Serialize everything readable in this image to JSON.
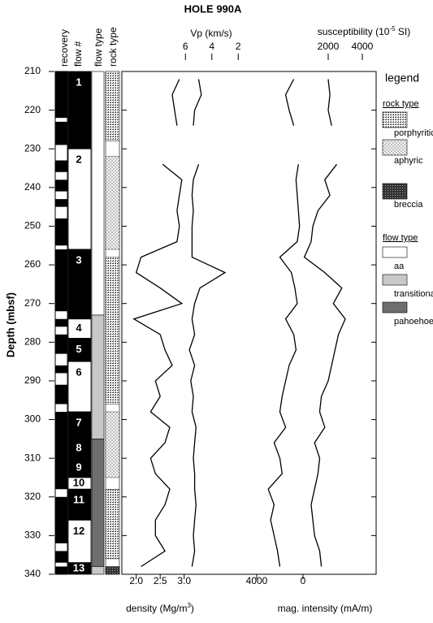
{
  "title": "HOLE 990A",
  "depth_axis": {
    "label": "Depth (mbsf)",
    "lim": [
      210,
      340
    ],
    "ticks": [
      210,
      220,
      230,
      240,
      250,
      260,
      270,
      280,
      290,
      300,
      310,
      320,
      330,
      340
    ]
  },
  "columns": [
    "recovery",
    "flow #",
    "flow type",
    "rock type"
  ],
  "recovery": [
    [
      210,
      222
    ],
    [
      223,
      229
    ],
    [
      233,
      236
    ],
    [
      238,
      241
    ],
    [
      243,
      245
    ],
    [
      248,
      255
    ],
    [
      256,
      272
    ],
    [
      274,
      276
    ],
    [
      278,
      283
    ],
    [
      286,
      288
    ],
    [
      291,
      296
    ],
    [
      298,
      318
    ],
    [
      320,
      332
    ],
    [
      334,
      337
    ],
    [
      338,
      340
    ]
  ],
  "flows": [
    {
      "label": "1",
      "top": 210,
      "bottom": 230,
      "fill": "#000000"
    },
    {
      "label": "2",
      "top": 230,
      "bottom": 256,
      "fill": "#ffffff"
    },
    {
      "label": "3",
      "top": 256,
      "bottom": 274,
      "fill": "#000000"
    },
    {
      "label": "4",
      "top": 274,
      "bottom": 279,
      "fill": "#ffffff"
    },
    {
      "label": "5",
      "top": 279,
      "bottom": 285,
      "fill": "#000000"
    },
    {
      "label": "6",
      "top": 285,
      "bottom": 298,
      "fill": "#ffffff"
    },
    {
      "label": "7",
      "top": 298,
      "bottom": 305,
      "fill": "#000000"
    },
    {
      "label": "8",
      "top": 305,
      "bottom": 310,
      "fill": "#000000"
    },
    {
      "label": "9",
      "top": 310,
      "bottom": 315,
      "fill": "#000000"
    },
    {
      "label": "10",
      "top": 315,
      "bottom": 318,
      "fill": "#ffffff"
    },
    {
      "label": "11",
      "top": 318,
      "bottom": 326,
      "fill": "#000000"
    },
    {
      "label": "12",
      "top": 326,
      "bottom": 337,
      "fill": "#ffffff"
    },
    {
      "label": "13",
      "top": 337,
      "bottom": 340,
      "fill": "#000000"
    }
  ],
  "flow_types": [
    {
      "type": "aa",
      "top": 210,
      "bottom": 273
    },
    {
      "type": "transitional",
      "top": 273,
      "bottom": 305
    },
    {
      "type": "pahoehoe",
      "top": 305,
      "bottom": 338
    },
    {
      "type": "transitional",
      "top": 338,
      "bottom": 340
    }
  ],
  "rock_types": [
    {
      "type": "porphyritic",
      "top": 210,
      "bottom": 228
    },
    {
      "type": "aphyric",
      "top": 232,
      "bottom": 256
    },
    {
      "type": "porphyritic",
      "top": 258,
      "bottom": 296
    },
    {
      "type": "aphyric",
      "top": 298,
      "bottom": 315
    },
    {
      "type": "porphyritic",
      "top": 318,
      "bottom": 336
    },
    {
      "type": "breccia",
      "top": 338,
      "bottom": 340
    }
  ],
  "legend": {
    "title": "legend",
    "rock_type": {
      "title": "rock type",
      "items": [
        "porphyritic",
        "aphyric",
        "breccia"
      ]
    },
    "flow_type": {
      "title": "flow type",
      "items": [
        {
          "label": "aa",
          "color": "#ffffff"
        },
        {
          "label": "transitional",
          "color": "#c8c8c8"
        },
        {
          "label": "pahoehoe",
          "color": "#6e6e6e"
        }
      ]
    }
  },
  "depth": [
    212,
    216,
    220,
    224,
    228,
    234,
    238,
    242,
    246,
    250,
    254,
    258,
    262,
    266,
    270,
    274,
    278,
    282,
    286,
    290,
    294,
    298,
    302,
    306,
    310,
    314,
    318,
    322,
    326,
    330,
    334,
    338
  ],
  "tracks": [
    {
      "axis": "bottom",
      "label_parts": [
        "density (Mg/m",
        "3",
        ")"
      ],
      "lim": [
        1.7,
        3.3
      ],
      "ticks": [
        {
          "value": 2,
          "label": "2.0"
        },
        2.5,
        {
          "value": 3,
          "label": "3.0"
        }
      ],
      "values": [
        2.9,
        2.75,
        2.8,
        2.85,
        null,
        2.55,
        2.95,
        2.9,
        2.85,
        2.9,
        2.85,
        2.1,
        2.0,
        2.5,
        2.95,
        1.95,
        2.5,
        2.6,
        2.75,
        2.4,
        2.5,
        2.3,
        2.7,
        2.6,
        2.3,
        2.4,
        2.7,
        2.6,
        2.4,
        2.4,
        2.6,
        2.1
      ]
    },
    {
      "axis": "top",
      "label_parts": [
        "Vp (km/s)"
      ],
      "lim": [
        7,
        1
      ],
      "ticks": [
        6,
        4,
        2
      ],
      "values": [
        5.0,
        4.8,
        5.3,
        5.4,
        null,
        5.0,
        5.4,
        5.5,
        5.4,
        5.5,
        5.5,
        5.5,
        3.0,
        4.9,
        5.3,
        5.5,
        5.3,
        5.7,
        5.3,
        5.6,
        5.4,
        5.5,
        5.2,
        5.3,
        5.4,
        5.3,
        5.3,
        5.2,
        5.3,
        5.4,
        5.3,
        5.5
      ]
    },
    {
      "axis": "bottom",
      "label_parts": [
        "mag. intensity (mA/m)"
      ],
      "lim": [
        5000,
        -500
      ],
      "ticks": [
        4000,
        0
      ],
      "values": [
        800,
        1500,
        1200,
        800,
        null,
        400,
        600,
        500,
        400,
        300,
        500,
        2000,
        1000,
        700,
        500,
        1500,
        800,
        600,
        1200,
        1500,
        1800,
        2000,
        1500,
        2500,
        2000,
        1800,
        3000,
        2500,
        2800,
        2500,
        2200,
        2000
      ]
    },
    {
      "axis": "top",
      "label_parts": [
        "susceptibility (10",
        "-5",
        " SI)"
      ],
      "lim": [
        0,
        4800
      ],
      "ticks": [
        2000,
        4000
      ],
      "values": [
        2000,
        2100,
        2000,
        2200,
        null,
        2500,
        1800,
        2100,
        1400,
        1100,
        1000,
        600,
        1800,
        2800,
        2300,
        3000,
        2600,
        2400,
        2200,
        2000,
        1600,
        1500,
        1800,
        1200,
        1500,
        1400,
        1200,
        1000,
        1100,
        1200,
        1500,
        1600
      ]
    }
  ]
}
